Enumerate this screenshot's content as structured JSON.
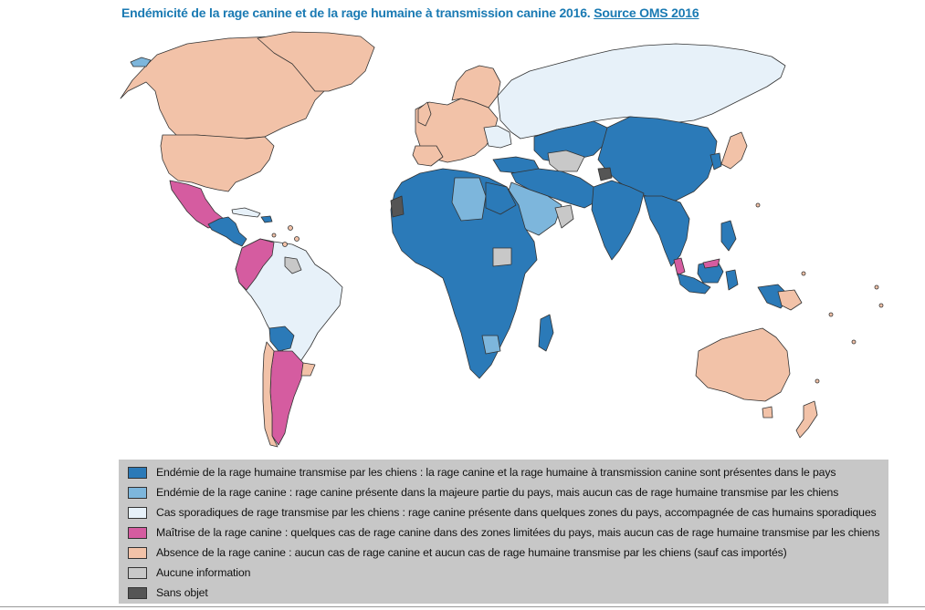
{
  "title": {
    "main": "Endémicité de la rage canine et de la rage humaine à transmission canine 2016. ",
    "source": "Source OMS 2016"
  },
  "colors": {
    "endemic": "#2b7ab8",
    "partial": "#7db6dc",
    "sporadic": "#e7f1f9",
    "controlled": "#d55ca0",
    "absent": "#f2c2a8",
    "no_info": "#c8c8c8",
    "not_applicable": "#555555",
    "ocean": "#ffffff",
    "legend_bg": "#c7c7c7",
    "title": "#1a7ab3"
  },
  "legend": [
    {
      "key": "endemic",
      "icon": "legend-swatch-dark-blue",
      "label": "Endémie de la rage humaine transmise par les chiens : la rage canine et la rage humaine à transmission canine sont présentes dans le pays"
    },
    {
      "key": "partial",
      "icon": "legend-swatch-light-blue",
      "label": "Endémie de la rage canine : rage canine présente dans la majeure partie du pays, mais aucun cas de rage humaine transmise par les chiens"
    },
    {
      "key": "sporadic",
      "icon": "legend-swatch-very-light-blue",
      "label": "Cas sporadiques de rage transmise par les chiens : rage canine présente dans quelques zones du pays, accompagnée de cas humains sporadiques"
    },
    {
      "key": "controlled",
      "icon": "legend-swatch-pink",
      "label": "Maîtrise de la rage canine : quelques cas de rage canine dans des zones limitées du pays, mais aucun cas de rage humaine transmise par les chiens"
    },
    {
      "key": "absent",
      "icon": "legend-swatch-peach",
      "label": "Absence de la rage canine : aucun cas de rage canine et aucun cas de rage humaine transmise par les chiens (sauf cas importés)"
    },
    {
      "key": "no_info",
      "icon": "legend-swatch-grey",
      "label": "Aucune information"
    },
    {
      "key": "not_applicable",
      "icon": "legend-swatch-dark-grey",
      "label": "Sans objet"
    }
  ]
}
